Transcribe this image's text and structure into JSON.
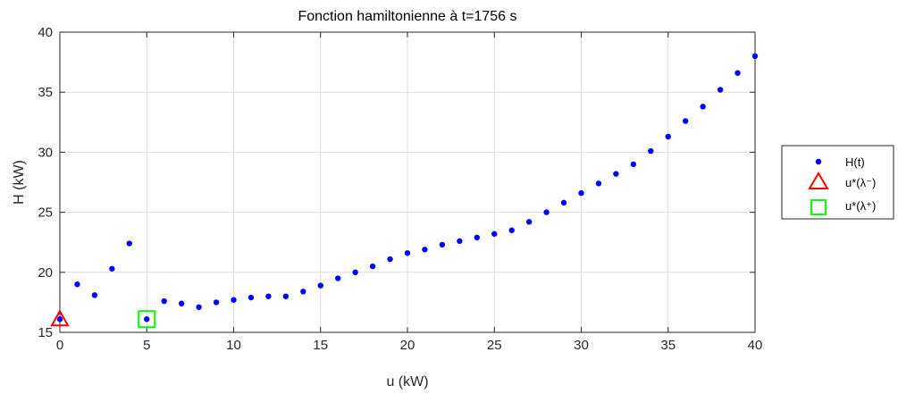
{
  "chart_data": {
    "type": "scatter",
    "title": "Fonction hamiltonienne à t=1756 s",
    "xlabel": "u (kW)",
    "ylabel": "H (kW)",
    "xlim": [
      0,
      40
    ],
    "ylim": [
      15,
      40
    ],
    "xticks": [
      "0",
      "5",
      "10",
      "15",
      "20",
      "25",
      "30",
      "35",
      "40"
    ],
    "yticks": [
      "15",
      "20",
      "25",
      "30",
      "35",
      "40"
    ],
    "grid": true,
    "legend_position": "outside-right",
    "series": [
      {
        "name": "H(t)",
        "marker": "dot",
        "color": "#0000ff",
        "x": [
          0,
          1,
          2,
          3,
          4,
          5,
          6,
          7,
          8,
          9,
          10,
          11,
          12,
          13,
          14,
          15,
          16,
          17,
          18,
          19,
          20,
          21,
          22,
          23,
          24,
          25,
          26,
          27,
          28,
          29,
          30,
          31,
          32,
          33,
          34,
          35,
          36,
          37,
          38,
          39,
          40
        ],
        "y": [
          16.1,
          19.0,
          18.1,
          20.3,
          22.4,
          16.1,
          17.6,
          17.4,
          17.1,
          17.5,
          17.7,
          17.9,
          18.0,
          18.0,
          18.4,
          18.9,
          19.5,
          20.0,
          20.5,
          21.1,
          21.6,
          21.9,
          22.3,
          22.6,
          22.9,
          23.2,
          23.5,
          24.2,
          25.0,
          25.8,
          26.6,
          27.4,
          28.2,
          29.0,
          30.1,
          31.3,
          32.6,
          33.8,
          35.2,
          36.6,
          38.0
        ]
      },
      {
        "name": "u*(λ⁻)",
        "marker": "triangle",
        "color": "#ff0000",
        "x": [
          0
        ],
        "y": [
          16.1
        ]
      },
      {
        "name": "u*(λ⁺)",
        "marker": "square",
        "color": "#00ff00",
        "x": [
          5
        ],
        "y": [
          16.1
        ]
      }
    ]
  }
}
